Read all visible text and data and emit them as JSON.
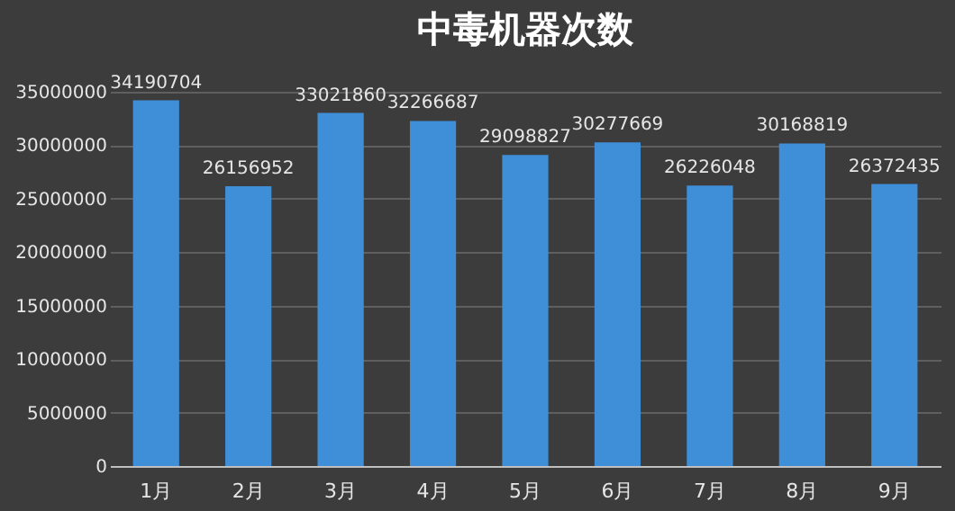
{
  "chart_data": {
    "type": "bar",
    "title": "中毒机器次数",
    "categories": [
      "1月",
      "2月",
      "3月",
      "4月",
      "5月",
      "6月",
      "7月",
      "8月",
      "9月"
    ],
    "values": [
      34190704,
      26156952,
      33021860,
      32266687,
      29098827,
      30277669,
      26226048,
      30168819,
      26372435
    ],
    "color": "#3f8fd8",
    "ylim": [
      0,
      35000000
    ],
    "yticks": [
      0,
      5000000,
      10000000,
      15000000,
      20000000,
      25000000,
      30000000,
      35000000
    ],
    "grid": "y",
    "data_labels": true
  }
}
